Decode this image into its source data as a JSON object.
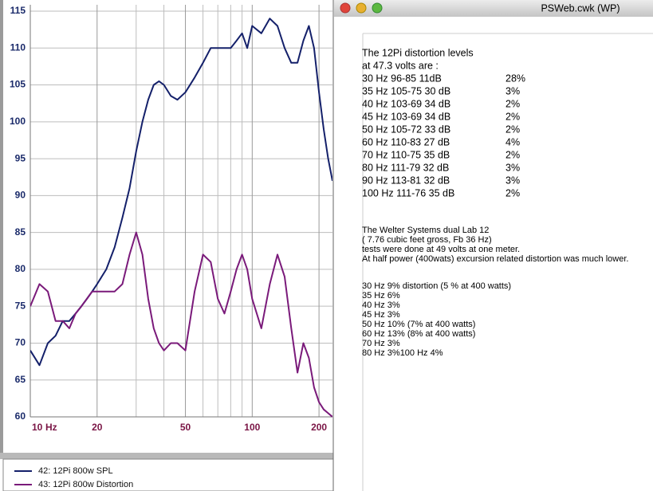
{
  "chart_data": {
    "type": "line",
    "xlabel": "Hz",
    "log_x": true,
    "grid": true,
    "x": [
      10,
      11,
      12,
      13,
      14,
      15,
      16,
      17,
      18,
      19,
      20,
      22,
      24,
      26,
      28,
      30,
      32,
      34,
      36,
      38,
      40,
      43,
      46,
      50,
      55,
      60,
      65,
      70,
      75,
      80,
      85,
      90,
      95,
      100,
      110,
      120,
      130,
      140,
      150,
      160,
      170,
      180,
      190,
      200,
      210,
      220,
      230
    ],
    "series": [
      {
        "name": "42: 12Pi 800w SPL",
        "color": "#14206a",
        "values": [
          69,
          67,
          70,
          71,
          73,
          73,
          74,
          75,
          76,
          77,
          78,
          80,
          83,
          87,
          91,
          96,
          100,
          103,
          105,
          105.5,
          105,
          103.5,
          103,
          104,
          106,
          108,
          110,
          110,
          110,
          110,
          111,
          112,
          110,
          113,
          112,
          114,
          113,
          110,
          108,
          108,
          111,
          113,
          110,
          104,
          99,
          95,
          92
        ]
      },
      {
        "name": "43: 12Pi 800w Distortion",
        "color": "#7a1a7a",
        "values": [
          75,
          78,
          77,
          73,
          73,
          72,
          74,
          75,
          76,
          77,
          77,
          77,
          77,
          78,
          82,
          85,
          82,
          76,
          72,
          70,
          69,
          70,
          70,
          69,
          77,
          82,
          81,
          76,
          74,
          77,
          80,
          82,
          80,
          76,
          72,
          78,
          82,
          79,
          72,
          66,
          70,
          68,
          64,
          62,
          61,
          60.5,
          60
        ]
      }
    ],
    "xlim": [
      10,
      230
    ],
    "xticks": [
      10,
      20,
      50,
      100,
      200
    ],
    "xminorticks": [
      30,
      40,
      60,
      70,
      80,
      90
    ],
    "ylim": [
      60,
      115
    ],
    "yticks": [
      60,
      65,
      70,
      75,
      80,
      85,
      90,
      95,
      100,
      105,
      110,
      115
    ]
  },
  "window": {
    "title": "PSWeb.cwk (WP)",
    "heading": [
      "The 12Pi distortion levels",
      "at 47.3 volts are :"
    ],
    "rows": [
      [
        "30 Hz 96-85 11dB",
        "28%"
      ],
      [
        "35 Hz 105-75 30 dB",
        "3%"
      ],
      [
        "40 Hz 103-69 34 dB",
        "2%"
      ],
      [
        "45 Hz 103-69 34 dB",
        "2%"
      ],
      [
        "50 Hz 105-72 33 dB",
        "2%"
      ],
      [
        "60 Hz 110-83 27 dB",
        "4%"
      ],
      [
        "70 Hz 110-75 35 dB",
        "2%"
      ],
      [
        "80 Hz 111-79 32 dB",
        "3%"
      ],
      [
        "90 Hz 113-81 32 dB",
        "3%"
      ],
      [
        "100 Hz 111-76 35 dB",
        "2%"
      ]
    ],
    "notes": [
      "The Welter Systems dual Lab 12",
      "( 7.76 cubic feet gross, Fb 36 Hz)",
      "tests were done at 49 volts at one meter.",
      " At half power (400wats) excursion related distortion was much lower."
    ],
    "list": [
      "30 Hz  9% distortion (5 % at 400 watts)",
      "35 Hz  6%",
      "40 Hz  3%",
      "45 Hz  3%",
      "50 Hz  10% (7% at 400 watts)",
      "60 Hz  13% (8% at 400 watts)",
      "70 Hz  3%",
      "80 Hz  3%100 Hz 4%"
    ]
  }
}
